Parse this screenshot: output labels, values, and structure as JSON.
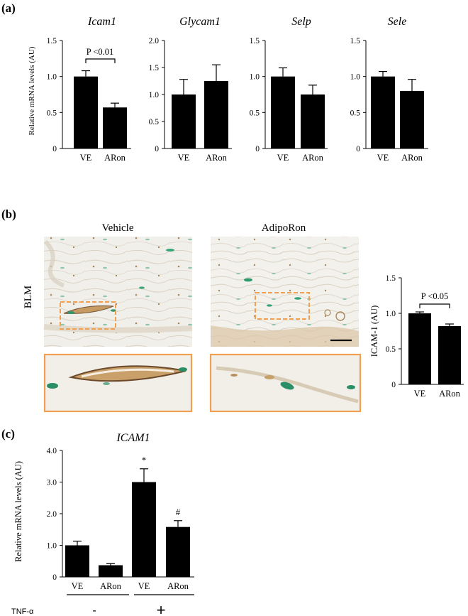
{
  "labels": {
    "panel_a": "(a)",
    "panel_b": "(b)",
    "panel_c": "(c)"
  },
  "images": {
    "vehicle_title": "Vehicle",
    "adiporon_title": "AdipoRon",
    "row_label": "BLM"
  },
  "treatment": {
    "label": "TNF-α",
    "minus": "-",
    "plus": "+"
  },
  "colors": {
    "bar": "#000000",
    "highlight_box": "#f0a050"
  },
  "chart_data": [
    {
      "id": "icam1",
      "type": "bar",
      "title": "Icam1",
      "categories": [
        "VE",
        "ARon"
      ],
      "values": [
        1.0,
        0.57
      ],
      "errors": [
        0.08,
        0.06
      ],
      "ylabel": "Relative mRNA levels (AU)",
      "ylim": [
        0,
        1.5
      ],
      "yticks": [
        "0",
        "0.5",
        "1.0",
        "1.5"
      ],
      "annotation": "P <0.01"
    },
    {
      "id": "glycam1",
      "type": "bar",
      "title": "Glycam1",
      "categories": [
        "VE",
        "ARon"
      ],
      "values": [
        1.0,
        1.25
      ],
      "errors": [
        0.28,
        0.3
      ],
      "ylabel": "",
      "ylim": [
        0,
        2.0
      ],
      "yticks": [
        "0",
        "0.5",
        "1.0",
        "1.5",
        "2.0"
      ]
    },
    {
      "id": "selp",
      "type": "bar",
      "title": "Selp",
      "categories": [
        "VE",
        "ARon"
      ],
      "values": [
        1.0,
        0.75
      ],
      "errors": [
        0.12,
        0.13
      ],
      "ylabel": "",
      "ylim": [
        0,
        1.5
      ],
      "yticks": [
        "0",
        "0.5",
        "1.0",
        "1.5"
      ]
    },
    {
      "id": "sele",
      "type": "bar",
      "title": "Sele",
      "categories": [
        "VE",
        "ARon"
      ],
      "values": [
        1.0,
        0.8
      ],
      "errors": [
        0.07,
        0.16
      ],
      "ylabel": "",
      "ylim": [
        0,
        1.5
      ],
      "yticks": [
        "0",
        "0.5",
        "1.0",
        "1.5"
      ]
    },
    {
      "id": "icam1_protein",
      "type": "bar",
      "title": "",
      "categories": [
        "VE",
        "ARon"
      ],
      "values": [
        1.0,
        0.82
      ],
      "errors": [
        0.02,
        0.03
      ],
      "ylabel": "ICAM-1 (AU)",
      "ylim": [
        0,
        1.5
      ],
      "yticks": [
        "0",
        "0.5",
        "1.0",
        "1.5"
      ],
      "annotation": "P <0.05"
    },
    {
      "id": "ICAM1",
      "type": "bar",
      "title": "ICAM1",
      "categories": [
        "VE",
        "ARon",
        "VE",
        "ARon"
      ],
      "values": [
        1.0,
        0.37,
        3.0,
        1.58
      ],
      "errors": [
        0.13,
        0.05,
        0.42,
        0.2
      ],
      "markers": [
        "",
        "",
        "*",
        "#"
      ],
      "ylabel": "Relative mRNA levels (AU)",
      "ylim": [
        0,
        4.0
      ],
      "yticks": [
        "0",
        "1.0",
        "2.0",
        "3.0",
        "4.0"
      ]
    }
  ]
}
